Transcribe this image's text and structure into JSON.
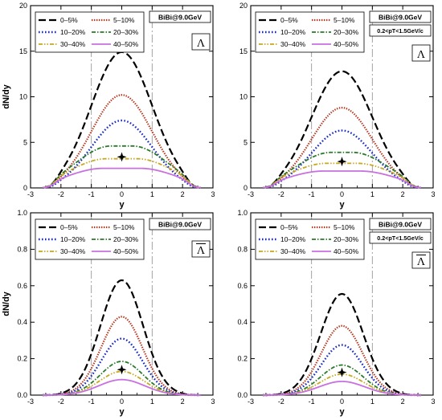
{
  "chart_data": [
    {
      "type": "line",
      "panel": "top-left",
      "xlabel": "y",
      "ylabel": "dN/dy",
      "xlim": [
        -3,
        3
      ],
      "ylim": [
        0,
        20
      ],
      "xticks": [
        -3,
        -2,
        -1,
        0,
        1,
        2,
        3
      ],
      "yticks": [
        0,
        5,
        10,
        15,
        20
      ],
      "tick_labels_x": [
        "-3",
        "-2",
        "-1",
        "0",
        "1",
        "2",
        "3"
      ],
      "tick_labels_y": [
        "0",
        "5",
        "10",
        "15",
        "20"
      ],
      "collision_label": "BiBi@9.0GeV",
      "cut_label": "",
      "particle_label": "Λ",
      "particle_bar": false,
      "reference_point": {
        "x": 0,
        "y": 3.4
      },
      "vlines": [
        -1,
        1
      ],
      "series": [
        {
          "name": "0–5%",
          "color": "#000000",
          "style": "long-dash",
          "peak": 14.9,
          "sigma": 1.0,
          "flat": 0.0
        },
        {
          "name": "5–10%",
          "color": "#b8321a",
          "style": "dense-dot",
          "peak": 10.2,
          "sigma": 1.0,
          "flat": 0.0
        },
        {
          "name": "10–20%",
          "color": "#1a2ac8",
          "style": "dot",
          "peak": 7.4,
          "sigma": 1.0,
          "flat": 0.0
        },
        {
          "name": "20–30%",
          "color": "#2a7a2a",
          "style": "dash-dot",
          "peak": 4.6,
          "sigma": 1.15,
          "flat": 0.35
        },
        {
          "name": "30–40%",
          "color": "#c8a820",
          "style": "dash-dot-dot",
          "peak": 3.2,
          "sigma": 1.2,
          "flat": 0.5
        },
        {
          "name": "40–50%",
          "color": "#c870e0",
          "style": "solid",
          "peak": 2.15,
          "sigma": 1.2,
          "flat": 0.6
        }
      ]
    },
    {
      "type": "line",
      "panel": "top-right",
      "xlabel": "y",
      "ylabel": "",
      "xlim": [
        -3,
        3
      ],
      "ylim": [
        0,
        20
      ],
      "xticks": [
        -3,
        -2,
        -1,
        0,
        1,
        2,
        3
      ],
      "yticks": [
        0,
        5,
        10,
        15,
        20
      ],
      "tick_labels_x": [
        "-3",
        "-2",
        "-1",
        "0",
        "1",
        "2",
        "3"
      ],
      "tick_labels_y": [
        "0",
        "5",
        "10",
        "15",
        "20"
      ],
      "collision_label": "BiBi@9.0GeV",
      "cut_label": "0.2<pT<1.5GeV/c",
      "particle_label": "Λ",
      "particle_bar": false,
      "reference_point": {
        "x": 0,
        "y": 2.9
      },
      "vlines": [
        -1,
        1
      ],
      "series": [
        {
          "name": "0–5%",
          "color": "#000000",
          "style": "long-dash",
          "peak": 12.8,
          "sigma": 1.0,
          "flat": 0.0
        },
        {
          "name": "5–10%",
          "color": "#b8321a",
          "style": "dense-dot",
          "peak": 8.8,
          "sigma": 1.0,
          "flat": 0.0
        },
        {
          "name": "10–20%",
          "color": "#1a2ac8",
          "style": "dot",
          "peak": 6.3,
          "sigma": 1.0,
          "flat": 0.0
        },
        {
          "name": "20–30%",
          "color": "#2a7a2a",
          "style": "dash-dot",
          "peak": 3.9,
          "sigma": 1.15,
          "flat": 0.35
        },
        {
          "name": "30–40%",
          "color": "#c8a820",
          "style": "dash-dot-dot",
          "peak": 2.7,
          "sigma": 1.2,
          "flat": 0.5
        },
        {
          "name": "40–50%",
          "color": "#c870e0",
          "style": "solid",
          "peak": 1.85,
          "sigma": 1.2,
          "flat": 0.6
        }
      ]
    },
    {
      "type": "line",
      "panel": "bottom-left",
      "xlabel": "y",
      "ylabel": "dN/dy",
      "xlim": [
        -3,
        3
      ],
      "ylim": [
        0,
        1.0
      ],
      "xticks": [
        -3,
        -2,
        -1,
        0,
        1,
        2,
        3
      ],
      "yticks": [
        0,
        0.2,
        0.4,
        0.6,
        0.8,
        1.0
      ],
      "tick_labels_x": [
        "-3",
        "-2",
        "-1",
        "0",
        "1",
        "2",
        "3"
      ],
      "tick_labels_y": [
        "0.0",
        "0.2",
        "0.4",
        "0.6",
        "0.8",
        "1.0"
      ],
      "collision_label": "BiBi@9.0GeV",
      "cut_label": "",
      "particle_label": "Λ",
      "particle_bar": true,
      "reference_point": {
        "x": 0,
        "y": 0.14
      },
      "vlines": [
        -1,
        1
      ],
      "series": [
        {
          "name": "0–5%",
          "color": "#000000",
          "style": "long-dash",
          "peak": 0.63,
          "sigma": 0.7,
          "flat": 0.0
        },
        {
          "name": "5–10%",
          "color": "#b8321a",
          "style": "dense-dot",
          "peak": 0.43,
          "sigma": 0.68,
          "flat": 0.0
        },
        {
          "name": "10–20%",
          "color": "#1a2ac8",
          "style": "dot",
          "peak": 0.31,
          "sigma": 0.68,
          "flat": 0.0
        },
        {
          "name": "20–30%",
          "color": "#2a7a2a",
          "style": "dash-dot",
          "peak": 0.185,
          "sigma": 0.7,
          "flat": 0.0
        },
        {
          "name": "30–40%",
          "color": "#c8a820",
          "style": "dash-dot-dot",
          "peak": 0.13,
          "sigma": 0.72,
          "flat": 0.0
        },
        {
          "name": "40–50%",
          "color": "#c870e0",
          "style": "solid",
          "peak": 0.085,
          "sigma": 0.75,
          "flat": 0.0
        }
      ]
    },
    {
      "type": "line",
      "panel": "bottom-right",
      "xlabel": "y",
      "ylabel": "",
      "xlim": [
        -3,
        3
      ],
      "ylim": [
        0,
        1.0
      ],
      "xticks": [
        -3,
        -2,
        -1,
        0,
        1,
        2,
        3
      ],
      "yticks": [
        0,
        0.2,
        0.4,
        0.6,
        0.8,
        1.0
      ],
      "tick_labels_x": [
        "-3",
        "-2",
        "-1",
        "0",
        "1",
        "2",
        "3"
      ],
      "tick_labels_y": [
        "0.0",
        "0.2",
        "0.4",
        "0.6",
        "0.8",
        "1.0"
      ],
      "collision_label": "BiBi@9.0GeV",
      "cut_label": "0.2<pT<1.5GeV/c",
      "particle_label": "Λ",
      "particle_bar": true,
      "reference_point": {
        "x": 0,
        "y": 0.125
      },
      "vlines": [
        -1,
        1
      ],
      "series": [
        {
          "name": "0–5%",
          "color": "#000000",
          "style": "long-dash",
          "peak": 0.555,
          "sigma": 0.7,
          "flat": 0.0
        },
        {
          "name": "5–10%",
          "color": "#b8321a",
          "style": "dense-dot",
          "peak": 0.38,
          "sigma": 0.68,
          "flat": 0.0
        },
        {
          "name": "10–20%",
          "color": "#1a2ac8",
          "style": "dot",
          "peak": 0.275,
          "sigma": 0.68,
          "flat": 0.0
        },
        {
          "name": "20–30%",
          "color": "#2a7a2a",
          "style": "dash-dot",
          "peak": 0.165,
          "sigma": 0.7,
          "flat": 0.0
        },
        {
          "name": "30–40%",
          "color": "#c8a820",
          "style": "dash-dot-dot",
          "peak": 0.115,
          "sigma": 0.72,
          "flat": 0.0
        },
        {
          "name": "40–50%",
          "color": "#c870e0",
          "style": "solid",
          "peak": 0.075,
          "sigma": 0.75,
          "flat": 0.0
        }
      ]
    }
  ]
}
